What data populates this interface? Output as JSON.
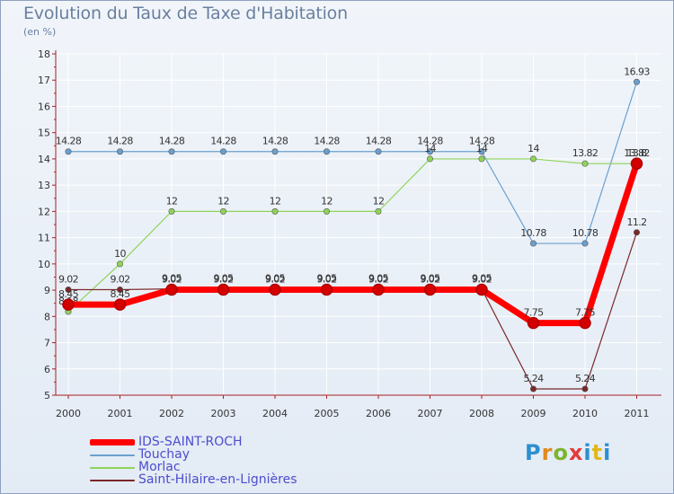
{
  "header": {
    "title": "Evolution du Taux de Taxe d'Habitation",
    "subtitle": "(en %)"
  },
  "logo": {
    "text": "Proxiti"
  },
  "chart_data": {
    "type": "line",
    "title": "Evolution du Taux de Taxe d'Habitation",
    "ylabel": "(en %)",
    "xlabel": "",
    "ylim": [
      5,
      18
    ],
    "yticks": [
      5,
      6,
      7,
      8,
      9,
      10,
      11,
      12,
      13,
      14,
      15,
      16,
      17,
      18
    ],
    "categories": [
      "2000",
      "2001",
      "2002",
      "2003",
      "2004",
      "2005",
      "2006",
      "2007",
      "2008",
      "2009",
      "2010",
      "2011"
    ],
    "series": [
      {
        "name": "Touchay",
        "color": "#6aa0cf",
        "values": [
          14.28,
          14.28,
          14.28,
          14.28,
          14.28,
          14.28,
          14.28,
          14.28,
          14.28,
          10.78,
          10.78,
          16.93
        ],
        "labels": [
          "14.28",
          "14.28",
          "14.28",
          "14.28",
          "14.28",
          "14.28",
          "14.28",
          "14.28",
          "14.28",
          "10.78",
          "10.78",
          "16.93"
        ]
      },
      {
        "name": "Morlac",
        "color": "#8fd45a",
        "values": [
          8.18,
          10,
          12,
          12,
          12,
          12,
          12,
          14,
          14,
          14,
          13.82,
          13.82
        ],
        "labels": [
          "8.18",
          "10",
          "12",
          "12",
          "12",
          "12",
          "12",
          "14",
          "14",
          "14",
          "13.82",
          "13.8"
        ]
      },
      {
        "name": "Saint-Hilaire-en-Lignières",
        "color": "#7a2828",
        "values": [
          9.02,
          9.02,
          9.05,
          9.05,
          9.05,
          9.05,
          9.05,
          9.05,
          9.05,
          5.24,
          5.24,
          11.2
        ],
        "labels": [
          "9.02",
          "9.02",
          "9.05",
          "9.05",
          "9.05",
          "9.05",
          "9.05",
          "9.05",
          "9.05",
          "5.24",
          "5.24",
          "11.2"
        ]
      },
      {
        "name": "IDS-SAINT-ROCH",
        "color": "#ff0000",
        "values": [
          8.45,
          8.45,
          9.02,
          9.02,
          9.02,
          9.02,
          9.02,
          9.02,
          9.02,
          7.75,
          7.75,
          13.82
        ],
        "labels": [
          "8.45",
          "8.45",
          "9.02",
          "9.02",
          "9.02",
          "9.02",
          "9.02",
          "9.02",
          "9.02",
          "7.75",
          "7.75",
          "13.82"
        ]
      }
    ],
    "legend": [
      "IDS-SAINT-ROCH",
      "Touchay",
      "Morlac",
      "Saint-Hilaire-en-Lignières"
    ]
  }
}
